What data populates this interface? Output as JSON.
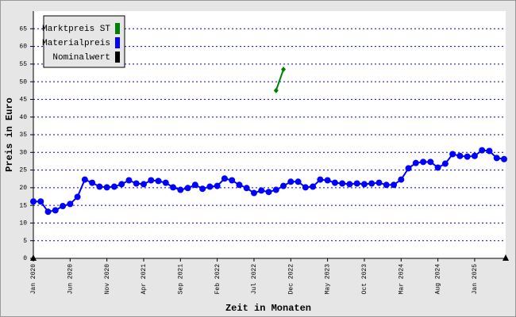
{
  "chart_data": {
    "type": "line",
    "xlabel": "Zeit in Monaten",
    "ylabel": "Preis in Euro",
    "categories": [
      "Jan 2020",
      null,
      null,
      null,
      null,
      "Jun 2020",
      null,
      null,
      null,
      null,
      "Nov 2020",
      null,
      null,
      null,
      null,
      "Apr 2021",
      null,
      null,
      null,
      null,
      "Sep 2021",
      null,
      null,
      null,
      null,
      "Feb 2022",
      null,
      null,
      null,
      null,
      "Jul 2022",
      null,
      null,
      null,
      null,
      "Dec 2022",
      null,
      null,
      null,
      null,
      "May 2023",
      null,
      null,
      null,
      null,
      "Oct 2023",
      null,
      null,
      null,
      null,
      "Mar 2024",
      null,
      null,
      null,
      null,
      "Aug 2024",
      null,
      null,
      null,
      null,
      "Jan 2025",
      null,
      null,
      null,
      null
    ],
    "series": [
      {
        "name": "Marktpreis ST",
        "color": "#008000",
        "marker": "diamond",
        "values": [
          null,
          null,
          null,
          null,
          null,
          null,
          null,
          null,
          null,
          null,
          null,
          null,
          null,
          null,
          null,
          null,
          null,
          null,
          null,
          null,
          null,
          null,
          null,
          null,
          null,
          null,
          null,
          null,
          null,
          null,
          null,
          null,
          null,
          47.5,
          53.5,
          null,
          null,
          null,
          null,
          null,
          null,
          null,
          null,
          null,
          null,
          null,
          null,
          null,
          null,
          null,
          null,
          null,
          null,
          null,
          null,
          null,
          null,
          null,
          null,
          null,
          null,
          null,
          null,
          null,
          null
        ]
      },
      {
        "name": "Materialpreis",
        "color": "#0000ff",
        "marker": "circle",
        "values": [
          16.1,
          16.1,
          13.2,
          13.6,
          14.8,
          15.4,
          17.4,
          22.3,
          21.4,
          20.3,
          20.1,
          20.3,
          21.0,
          22.1,
          21.2,
          21.0,
          22.1,
          21.9,
          21.4,
          20.1,
          19.4,
          19.9,
          20.8,
          19.7,
          20.3,
          20.5,
          22.6,
          22.1,
          20.8,
          19.9,
          18.5,
          19.2,
          18.8,
          19.4,
          20.5,
          21.7,
          21.7,
          20.1,
          20.3,
          22.3,
          22.1,
          21.4,
          21.2,
          21.0,
          21.2,
          21.0,
          21.2,
          21.4,
          20.8,
          20.8,
          22.3,
          25.5,
          27.0,
          27.3,
          27.3,
          25.7,
          26.8,
          29.5,
          29.0,
          28.8,
          29.0,
          30.6,
          30.4,
          28.4,
          28.1
        ]
      },
      {
        "name": "Nominalwert",
        "color": "#000000",
        "marker": "none",
        "values": [
          null,
          null,
          null,
          null,
          null,
          null,
          null,
          null,
          null,
          null,
          null,
          null,
          null,
          null,
          null,
          null,
          null,
          null,
          null,
          null,
          null,
          null,
          null,
          null,
          null,
          null,
          null,
          null,
          null,
          null,
          null,
          null,
          null,
          null,
          null,
          null,
          null,
          null,
          null,
          null,
          null,
          null,
          null,
          null,
          null,
          null,
          null,
          null,
          null,
          null,
          null,
          null,
          null,
          null,
          null,
          null,
          null,
          null,
          null,
          null,
          null,
          null,
          null,
          null,
          null
        ]
      }
    ],
    "ylim": [
      0,
      70
    ],
    "yticks": [
      0,
      5,
      10,
      15,
      20,
      25,
      30,
      35,
      40,
      45,
      50,
      55,
      60,
      65
    ],
    "grid": true,
    "grid_color": "#0000cc",
    "legend": "upper left"
  }
}
